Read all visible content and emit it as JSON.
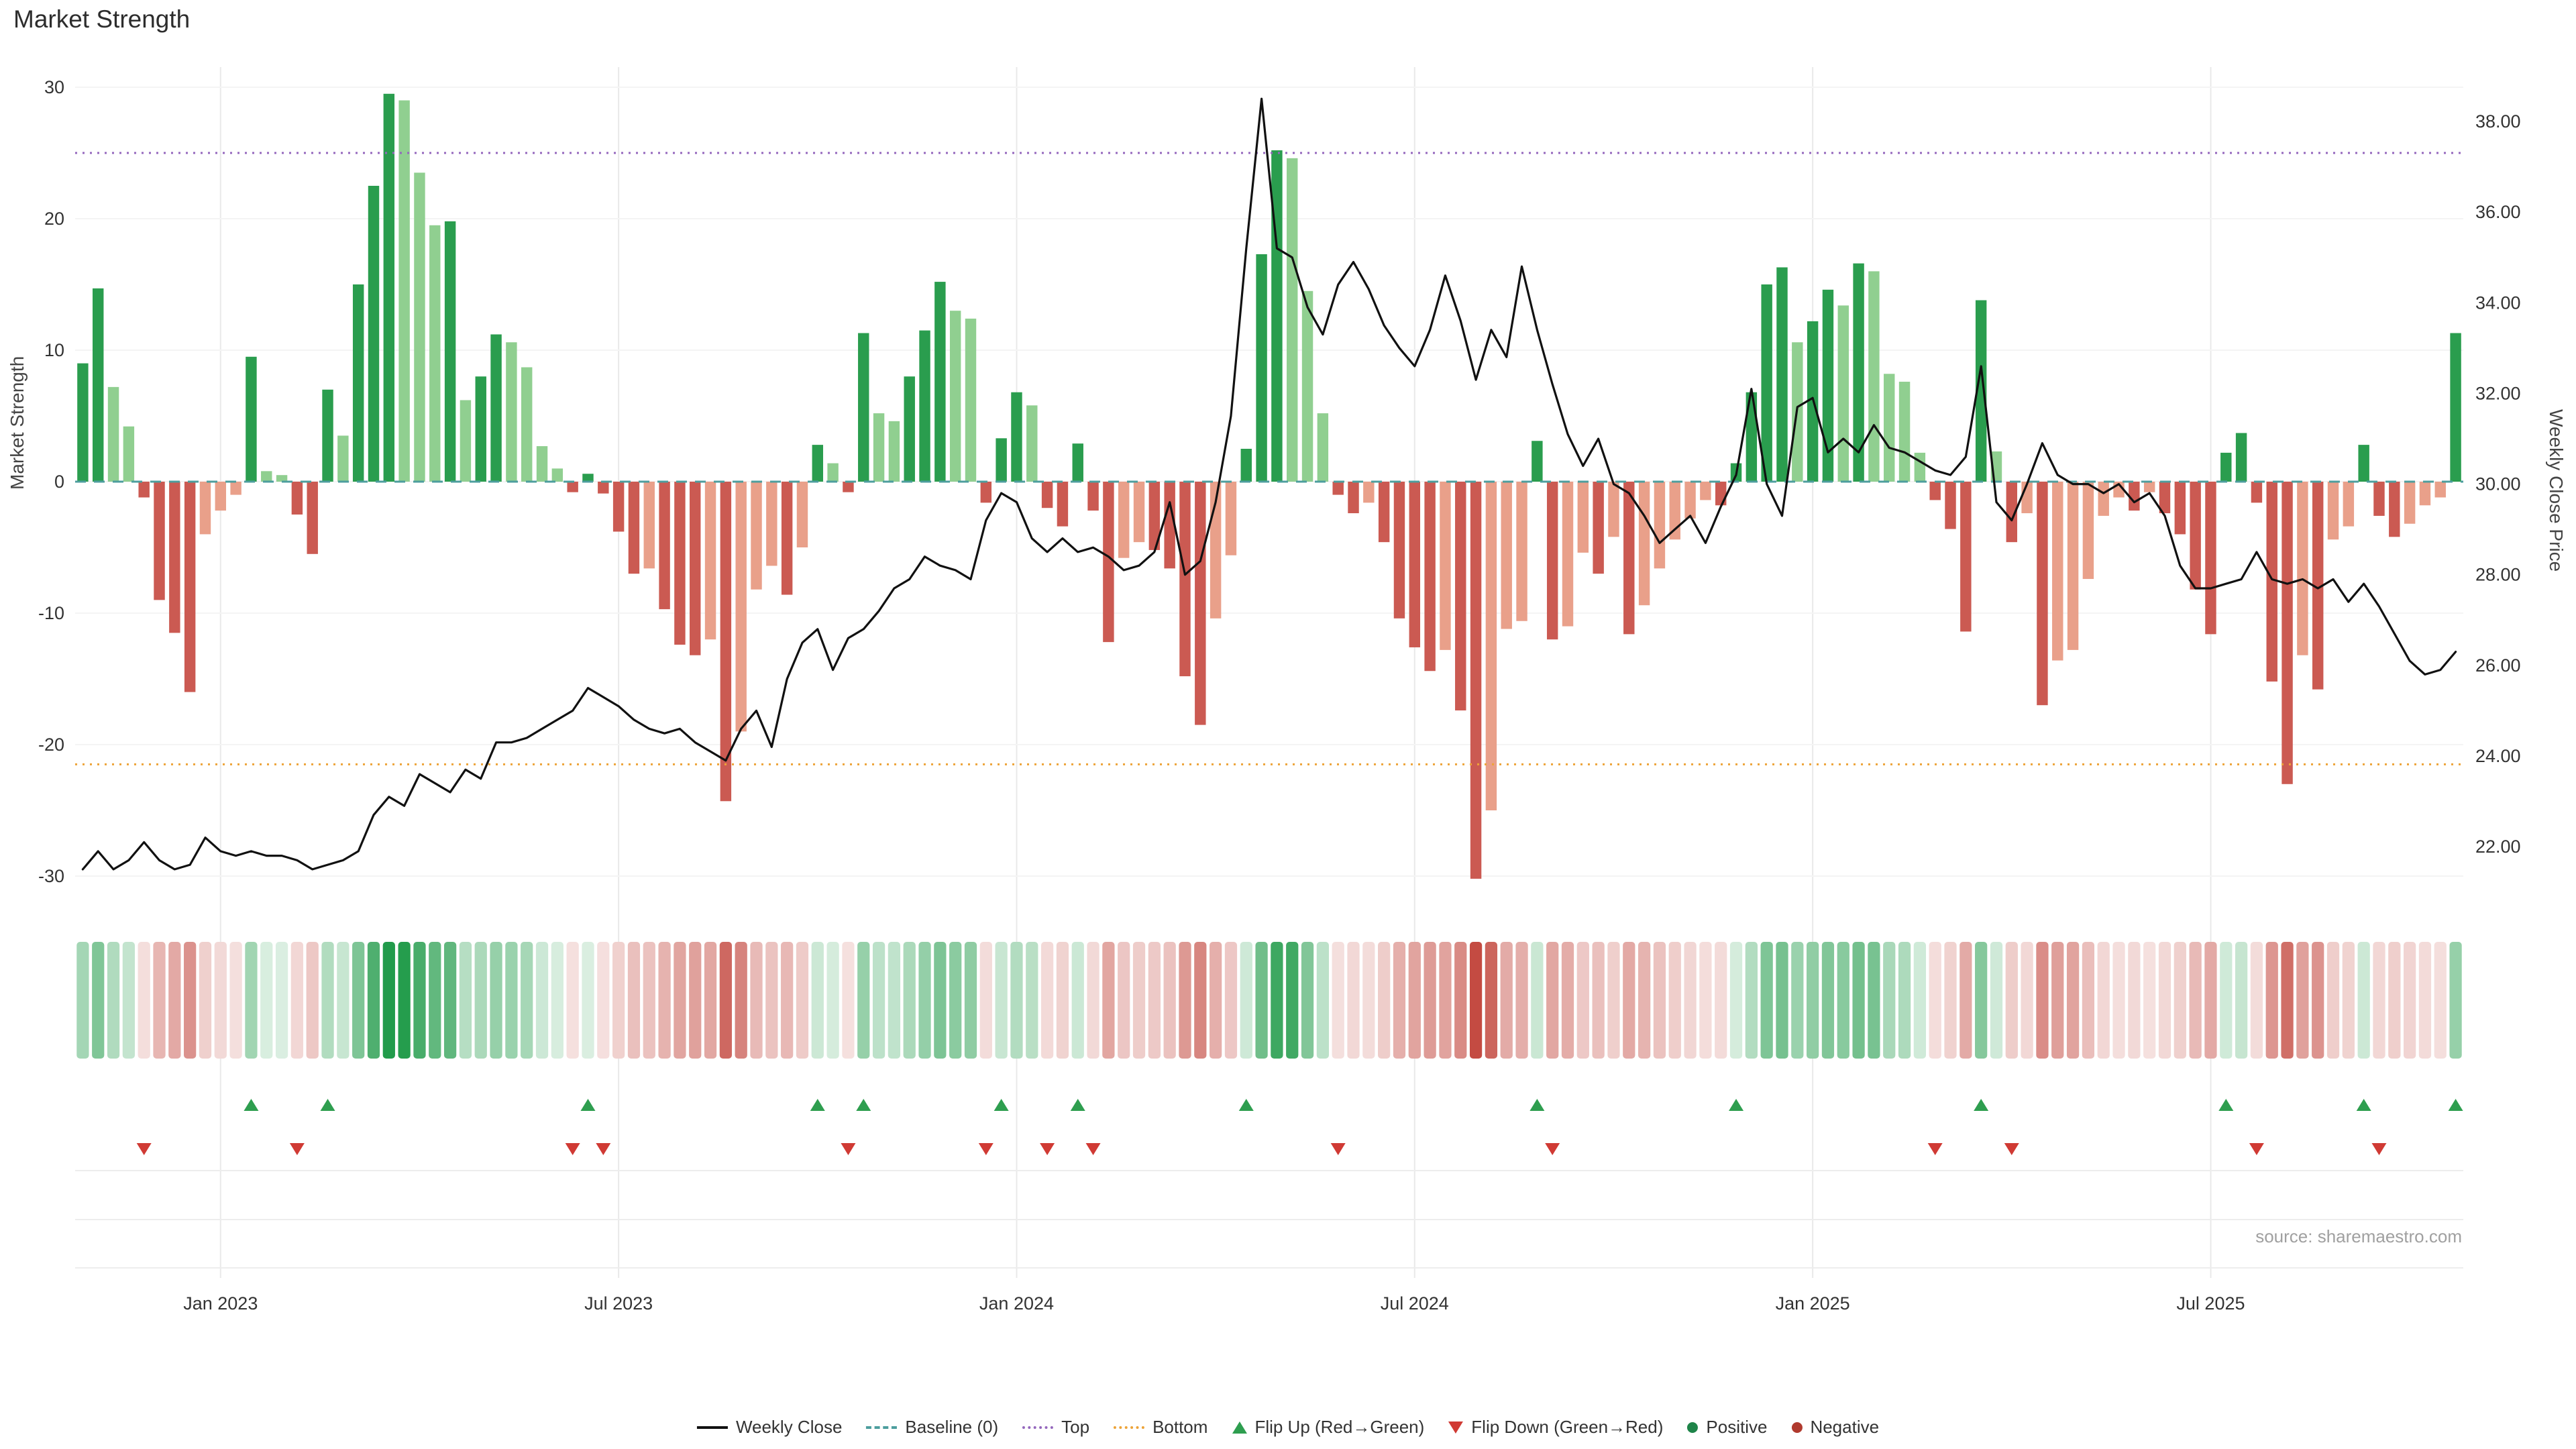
{
  "title": "Market Strength",
  "left_axis": {
    "title": "Market Strength",
    "ticks": [
      30,
      20,
      10,
      0,
      -10,
      -20,
      -30
    ]
  },
  "right_axis": {
    "title": "Weekly Close Price",
    "ticks": [
      "38.00",
      "36.00",
      "34.00",
      "32.00",
      "30.00",
      "28.00",
      "26.00",
      "24.00",
      "22.00"
    ],
    "tick_values": [
      38,
      36,
      34,
      32,
      30,
      28,
      26,
      24,
      22
    ]
  },
  "source": "source: sharemaestro.com",
  "legend": [
    {
      "label": "Weekly Close",
      "type": "line",
      "color": "#111111"
    },
    {
      "label": "Baseline (0)",
      "type": "dash",
      "color": "#4d9e9e"
    },
    {
      "label": "Top",
      "type": "dot",
      "color": "#9467bd"
    },
    {
      "label": "Bottom",
      "type": "dot",
      "color": "#eda338"
    },
    {
      "label": "Flip Up (Red→Green)",
      "type": "triangle-up",
      "color": "#2e9e4f"
    },
    {
      "label": "Flip Down (Green→Red)",
      "type": "triangle-down",
      "color": "#d03a34"
    },
    {
      "label": "Positive",
      "type": "circle",
      "color": "#1e8449"
    },
    {
      "label": "Negative",
      "type": "circle",
      "color": "#b03a2e"
    }
  ],
  "chart_data": {
    "type": "bar+line",
    "title": "Market Strength",
    "ylabel_left": "Market Strength",
    "ylabel_right": "Weekly Close Price",
    "left_ylim": [
      -30,
      30
    ],
    "right_ylim": [
      22,
      38
    ],
    "baseline": 0,
    "top_threshold": 25,
    "bottom_threshold": -21.5,
    "x_ticks": [
      {
        "label": "Jan 2023",
        "week": 9
      },
      {
        "label": "Jul 2023",
        "week": 35
      },
      {
        "label": "Jan 2024",
        "week": 61
      },
      {
        "label": "Jul 2024",
        "week": 87
      },
      {
        "label": "Jan 2025",
        "week": 113
      },
      {
        "label": "Jul 2025",
        "week": 139
      }
    ],
    "strength": [
      9.0,
      14.7,
      7.2,
      4.2,
      -1.2,
      -9.0,
      -11.5,
      -16.0,
      -4.0,
      -2.2,
      -1.0,
      9.5,
      0.8,
      0.5,
      -2.5,
      -5.5,
      7.0,
      3.5,
      15.0,
      22.5,
      29.5,
      29.0,
      23.5,
      19.5,
      19.8,
      6.2,
      8.0,
      11.2,
      10.6,
      8.7,
      2.7,
      1.0,
      -0.8,
      0.6,
      -0.9,
      -3.8,
      -7.0,
      -6.6,
      -9.7,
      -12.4,
      -13.2,
      -12.0,
      -24.3,
      -19.0,
      -8.2,
      -6.4,
      -8.6,
      -5.0,
      2.8,
      1.4,
      -0.8,
      11.3,
      5.2,
      4.6,
      8.0,
      11.5,
      15.2,
      13.0,
      12.4,
      -1.6,
      3.3,
      6.8,
      5.8,
      -2.0,
      -3.4,
      2.9,
      -2.2,
      -12.2,
      -5.8,
      -4.6,
      -5.2,
      -6.6,
      -14.8,
      -18.5,
      -10.4,
      -5.6,
      2.5,
      17.3,
      25.2,
      24.6,
      14.5,
      5.2,
      -1.0,
      -2.4,
      -1.6,
      -4.6,
      -10.4,
      -12.6,
      -14.4,
      -12.8,
      -17.4,
      -30.2,
      -25.0,
      -11.2,
      -10.6,
      3.1,
      -12.0,
      -11.0,
      -5.4,
      -7.0,
      -4.2,
      -11.6,
      -9.4,
      -6.6,
      -4.4,
      -2.8,
      -1.4,
      -1.8,
      1.4,
      6.8,
      15.0,
      16.3,
      10.6,
      12.2,
      14.6,
      13.4,
      16.6,
      16.0,
      8.2,
      7.6,
      2.2,
      -1.4,
      -3.6,
      -11.4,
      13.8,
      2.3,
      -4.6,
      -2.4,
      -17.0,
      -13.6,
      -12.8,
      -7.4,
      -2.6,
      -1.2,
      -2.2,
      -0.8,
      -2.4,
      -4.0,
      -8.2,
      -11.6,
      2.2,
      3.7,
      -1.6,
      -15.2,
      -23.0,
      -13.2,
      -15.8,
      -4.4,
      -3.4,
      2.8,
      -2.6,
      -4.2,
      -3.2,
      -1.8,
      -1.2,
      11.3
    ],
    "price": [
      21.5,
      21.9,
      21.5,
      21.7,
      22.1,
      21.7,
      21.5,
      21.6,
      22.2,
      21.9,
      21.8,
      21.9,
      21.8,
      21.8,
      21.7,
      21.5,
      21.6,
      21.7,
      21.9,
      22.7,
      23.1,
      22.9,
      23.6,
      23.4,
      23.2,
      23.7,
      23.5,
      24.3,
      24.3,
      24.4,
      24.6,
      24.8,
      25.0,
      25.5,
      25.3,
      25.1,
      24.8,
      24.6,
      24.5,
      24.6,
      24.3,
      24.1,
      23.9,
      24.6,
      25.0,
      24.2,
      25.7,
      26.5,
      26.8,
      25.9,
      26.6,
      26.8,
      27.2,
      27.7,
      27.9,
      28.4,
      28.2,
      28.1,
      27.9,
      29.2,
      29.8,
      29.6,
      28.8,
      28.5,
      28.8,
      28.5,
      28.6,
      28.4,
      28.1,
      28.2,
      28.5,
      29.6,
      28.0,
      28.3,
      29.6,
      31.5,
      35.2,
      38.5,
      35.2,
      35.0,
      33.9,
      33.3,
      34.4,
      34.9,
      34.3,
      33.5,
      33.0,
      32.6,
      33.4,
      34.6,
      33.6,
      32.3,
      33.4,
      32.8,
      34.8,
      33.4,
      32.2,
      31.1,
      30.4,
      31.0,
      30.0,
      29.8,
      29.3,
      28.7,
      29.0,
      29.3,
      28.7,
      29.5,
      30.2,
      32.1,
      30.0,
      29.3,
      31.7,
      31.9,
      30.7,
      31.0,
      30.7,
      31.3,
      30.8,
      30.7,
      30.5,
      30.3,
      30.2,
      30.6,
      32.6,
      29.6,
      29.2,
      30.0,
      30.9,
      30.2,
      30.0,
      30.0,
      29.8,
      30.0,
      29.6,
      29.8,
      29.3,
      28.2,
      27.7,
      27.7,
      27.8,
      27.9,
      28.5,
      27.9,
      27.8,
      27.9,
      27.7,
      27.9,
      27.4,
      27.8,
      27.3,
      26.7,
      26.1,
      25.8,
      25.9,
      26.3
    ],
    "colors": {
      "bar_pos_dark": "#2a9d4e",
      "bar_pos_light": "#90cf90",
      "bar_neg_dark": "#cb5a52",
      "bar_neg_light": "#e9a08a",
      "heat_pos_base": "#1f9a48",
      "heat_neg_base": "#c44b42",
      "price_line": "#111111",
      "baseline": "#4d9e9e",
      "top_line": "#9467bd",
      "bottom_line": "#eda338",
      "flip_up": "#2e9e4f",
      "flip_down": "#d03a34",
      "grid": "#e9e9e9",
      "tick_text": "#333333"
    }
  }
}
